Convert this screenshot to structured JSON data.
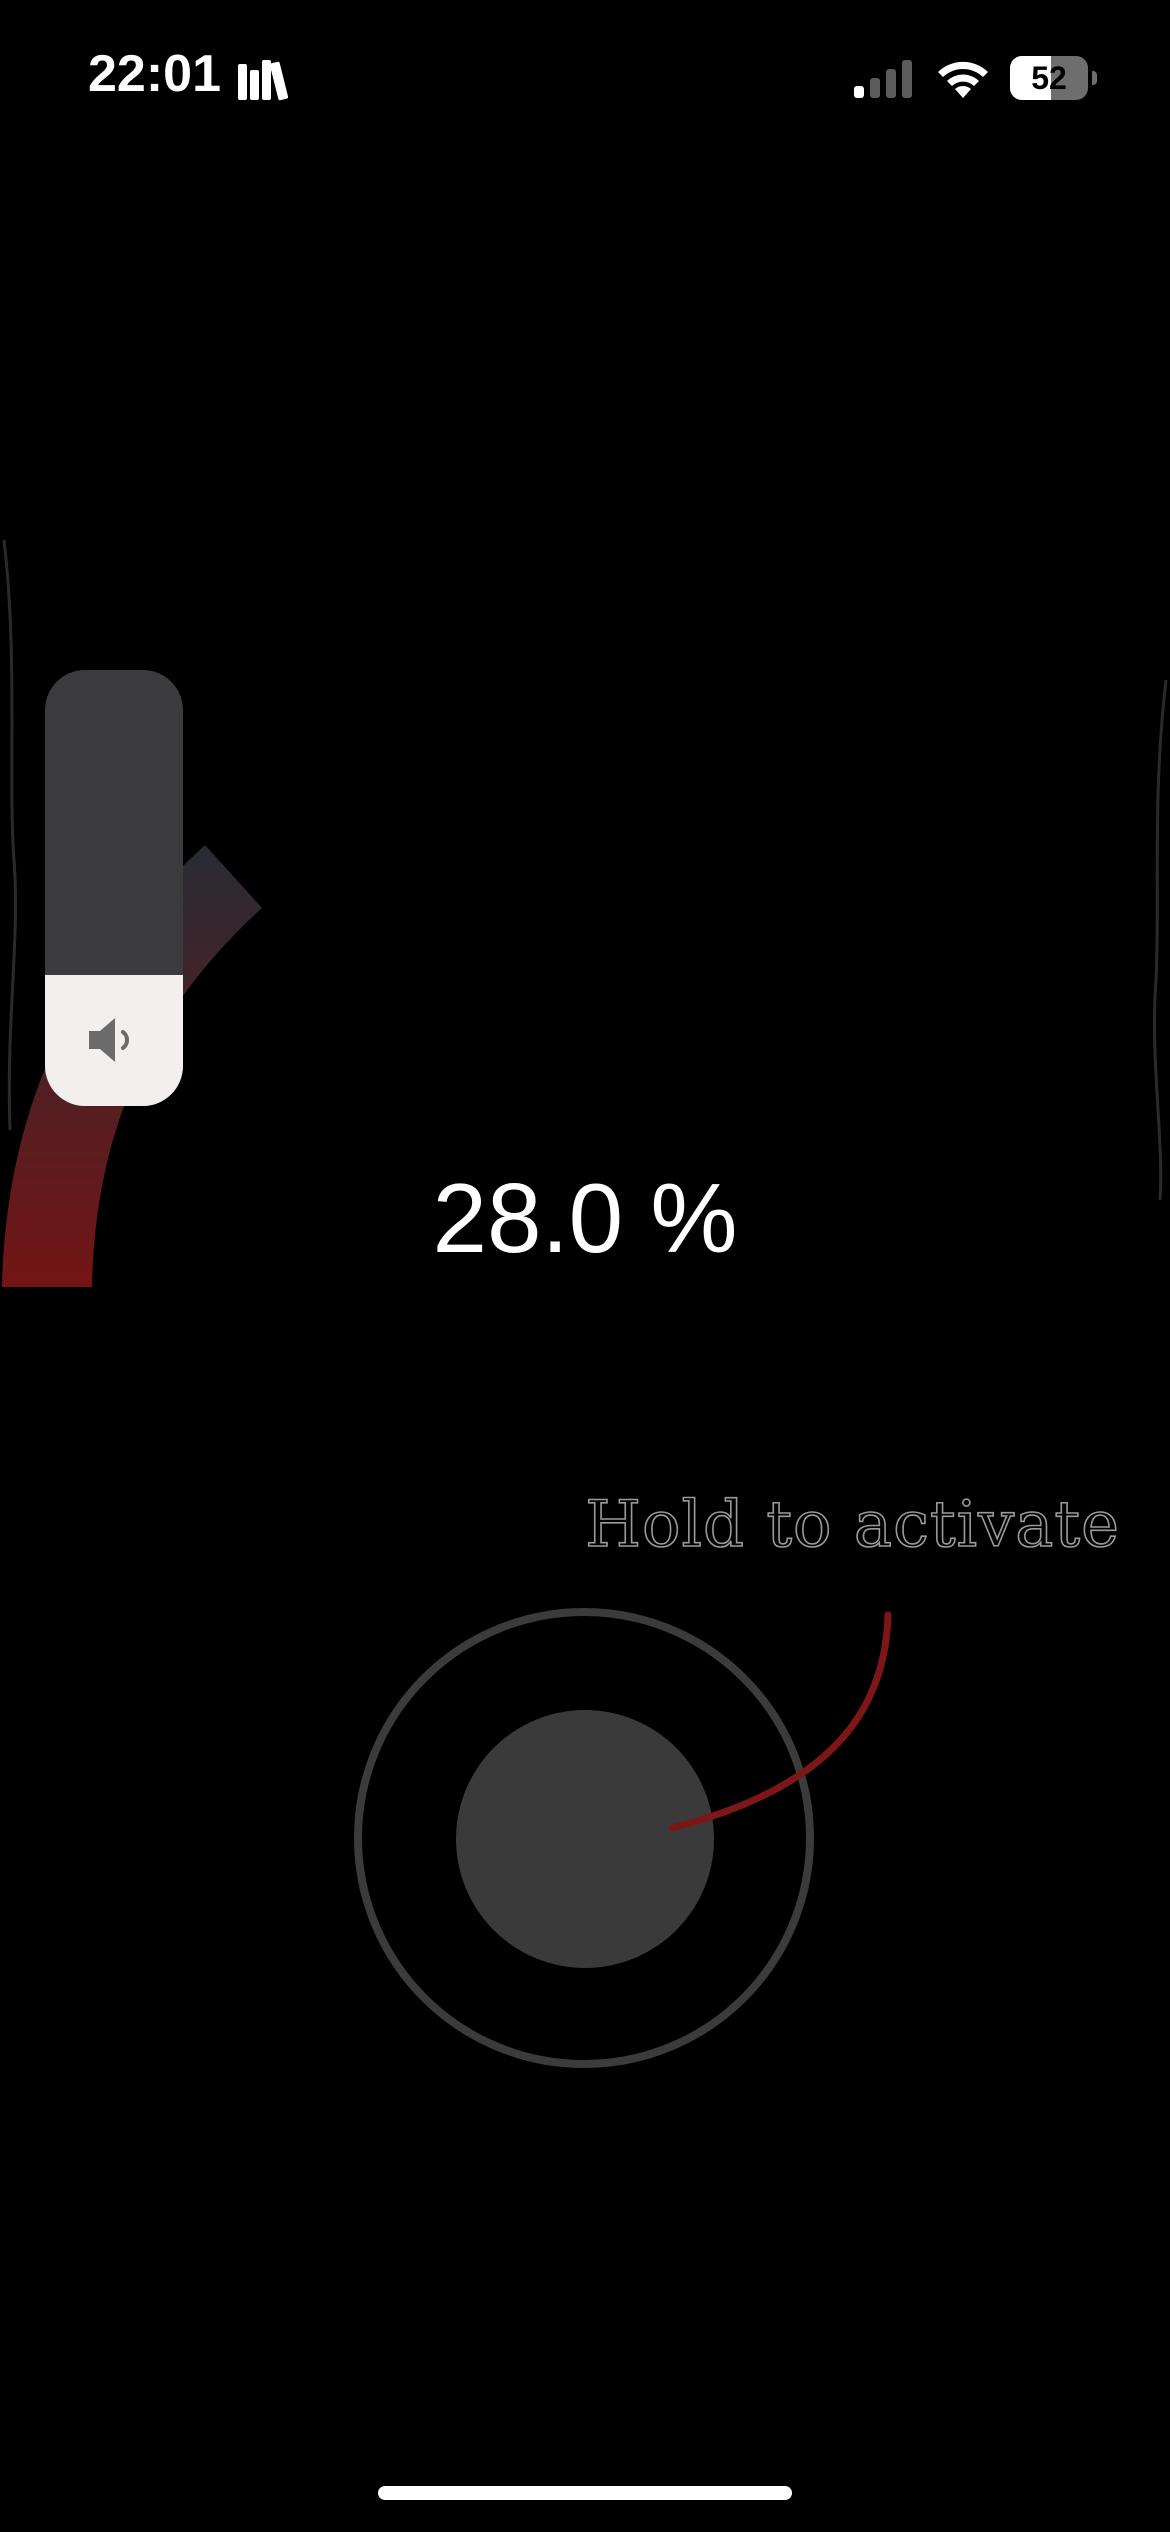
{
  "status_bar": {
    "time": "22:01",
    "battery_level": "52",
    "battery_fraction": 0.52,
    "icons": [
      "books-icon",
      "cellular-signal-icon",
      "wifi-icon",
      "battery-icon"
    ]
  },
  "volume_hud": {
    "level_fraction": 0.3,
    "icon": "speaker-icon"
  },
  "readout": {
    "percent": "28.0 %"
  },
  "activation": {
    "hint": "Hold to activate"
  },
  "colors": {
    "background": "#000000",
    "accent_red": "#8b1a1a",
    "control_gray": "#3a3a3a"
  }
}
